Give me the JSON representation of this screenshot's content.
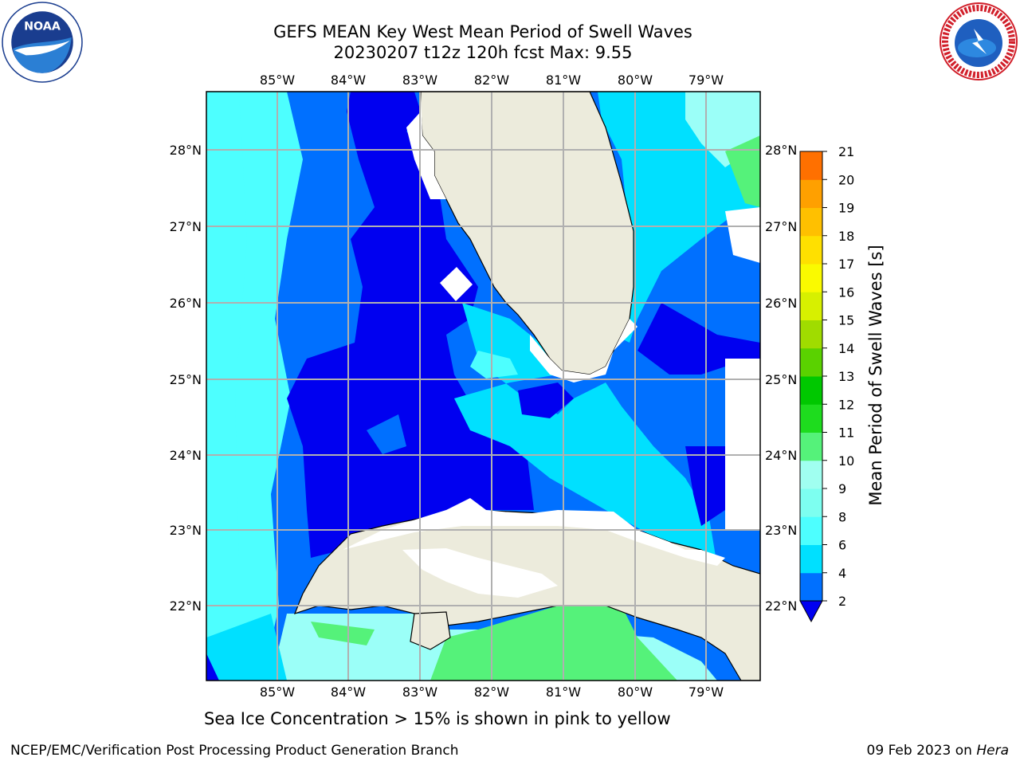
{
  "title_line1": "GEFS MEAN Key West Mean Period of Swell Waves",
  "title_line2": "20230207 t12z 120h fcst   Max: 9.55",
  "lon_labels": [
    "85°W",
    "84°W",
    "83°W",
    "82°W",
    "81°W",
    "80°W",
    "79°W"
  ],
  "lat_labels": [
    "28°N",
    "27°N",
    "26°N",
    "25°N",
    "24°N",
    "23°N",
    "22°N"
  ],
  "colorbar": {
    "label": "Mean Period of Swell Waves [s]",
    "ticks": [
      "2",
      "4",
      "6",
      "8",
      "9",
      "10",
      "11",
      "12",
      "13",
      "14",
      "15",
      "16",
      "17",
      "18",
      "19",
      "20",
      "21"
    ],
    "colors": [
      "#0070ff",
      "#00e0ff",
      "#4dffff",
      "#7dfff0",
      "#a0fff0",
      "#55f27a",
      "#1edc1e",
      "#00c800",
      "#5ad200",
      "#a0dc00",
      "#d7f000",
      "#fafa00",
      "#ffe000",
      "#ffc000",
      "#ffa000",
      "#ff7000",
      "#ff4000",
      "#ff1000"
    ],
    "extend_color": "#0000f0"
  },
  "sea_ice_note": "Sea Ice Concentration > 15% is shown in pink to yellow",
  "footer_left": "NCEP/EMC/Verification Post Processing Product Generation Branch",
  "footer_date": "09 Feb 2023 on ",
  "footer_machine": "Hera",
  "colors": {
    "land": "#ecebdc",
    "deep_blue": "#0000f0",
    "blue": "#0070ff",
    "cyan": "#00e0ff",
    "light_cyan": "#4dffff",
    "pale_cyan": "#9bfff8",
    "green": "#55f27a"
  }
}
